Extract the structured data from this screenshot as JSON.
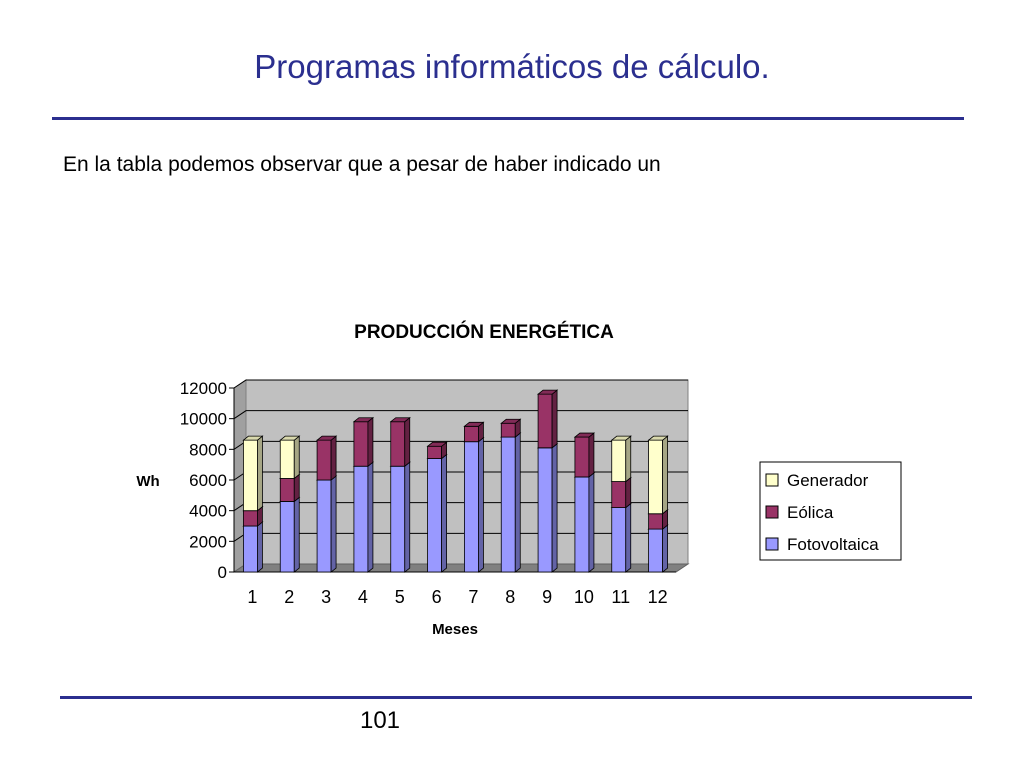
{
  "slide": {
    "title": "Programas informáticos de cálculo.",
    "body_text": "En la tabla podemos observar que a pesar de haber indicado un",
    "page_number": "101"
  },
  "colors": {
    "title": "#2b2f8f",
    "rule": "#2b2f8f",
    "plot_background": "#c0c0c0",
    "generador": "#ffffcc",
    "eolica": "#993366",
    "fotovoltaica": "#9999ff"
  },
  "chart_data": {
    "type": "bar",
    "stacked": true,
    "three_d": true,
    "title": "PRODUCCIÓN ENERGÉTICA",
    "xlabel": "Meses",
    "ylabel": "Wh",
    "categories": [
      "1",
      "2",
      "3",
      "4",
      "5",
      "6",
      "7",
      "8",
      "9",
      "10",
      "11",
      "12"
    ],
    "ylim": [
      0,
      12000
    ],
    "yticks": [
      "0",
      "2000",
      "4000",
      "6000",
      "8000",
      "10000",
      "12000"
    ],
    "grid": true,
    "legend_position": "right",
    "series": [
      {
        "name": "Fotovoltaica",
        "color": "#9999ff",
        "values": [
          3000,
          4600,
          6000,
          6900,
          6900,
          7400,
          8500,
          8800,
          8100,
          6200,
          4200,
          2800
        ]
      },
      {
        "name": "Eólica",
        "color": "#993366",
        "values": [
          1000,
          1500,
          2600,
          2900,
          2900,
          800,
          1000,
          900,
          3500,
          2600,
          1700,
          1000
        ]
      },
      {
        "name": "Generador",
        "color": "#ffffcc",
        "values": [
          4600,
          2500,
          0,
          0,
          0,
          0,
          0,
          0,
          0,
          0,
          2700,
          4800
        ]
      }
    ],
    "legend_order": [
      "Generador",
      "Eólica",
      "Fotovoltaica"
    ]
  }
}
